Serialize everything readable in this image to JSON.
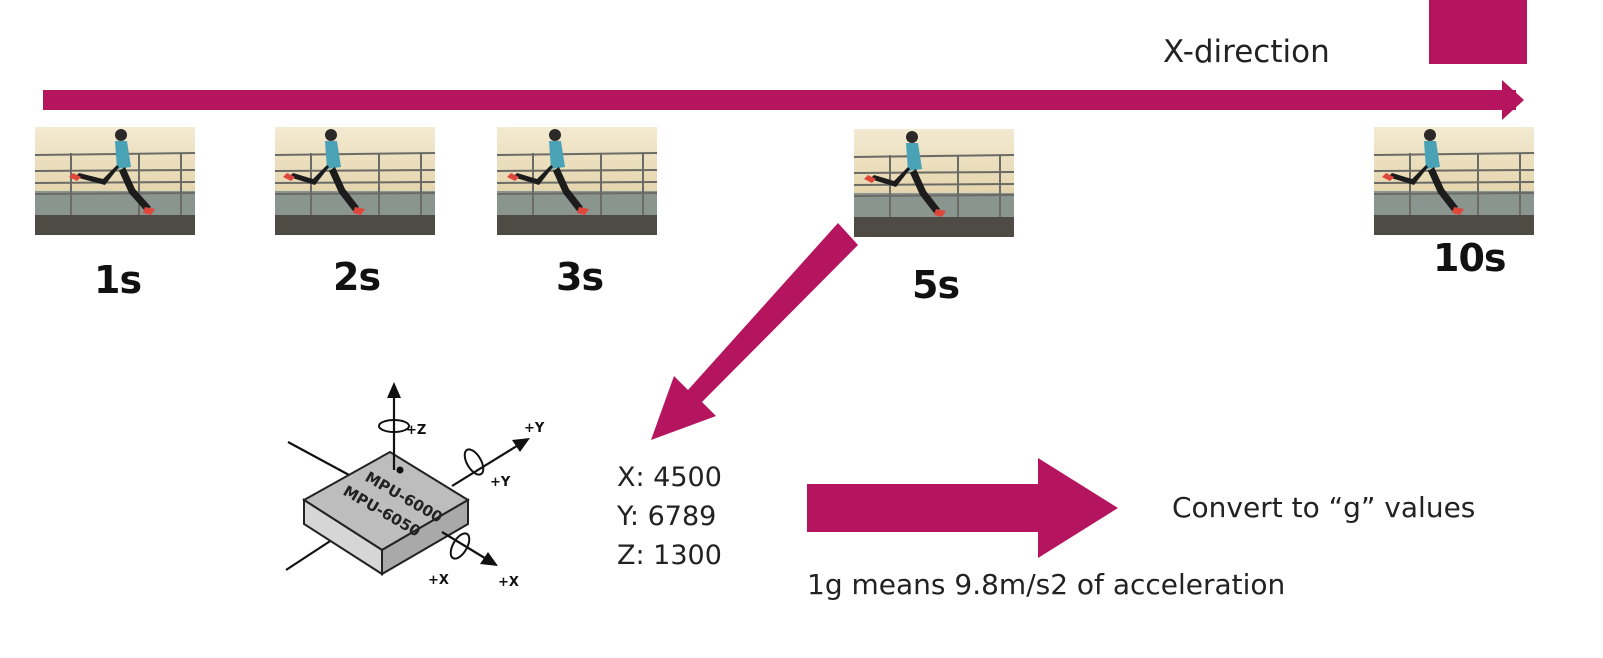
{
  "colors": {
    "accent": "#b5155e",
    "text": "#222222"
  },
  "timeline": {
    "direction_label": "X-direction",
    "frames": [
      {
        "label": "1s",
        "icon": "runner-photo"
      },
      {
        "label": "2s",
        "icon": "runner-photo"
      },
      {
        "label": "3s",
        "icon": "runner-photo"
      },
      {
        "label": "5s",
        "icon": "runner-photo"
      },
      {
        "label": "10s",
        "icon": "runner-photo"
      }
    ]
  },
  "sensor": {
    "chip_lines": [
      "MPU-6000",
      "MPU-6050"
    ],
    "axes": {
      "z": "+Z",
      "y_axis": "+Y",
      "y_rot": "+Y",
      "x_rot": "+X",
      "x_axis": "+X"
    }
  },
  "readings": {
    "x": "X: 4500",
    "y": "Y: 6789",
    "z": "Z: 1300"
  },
  "conversion": {
    "label": "Convert to “g” values",
    "note": "1g means 9.8m/s2 of acceleration"
  }
}
